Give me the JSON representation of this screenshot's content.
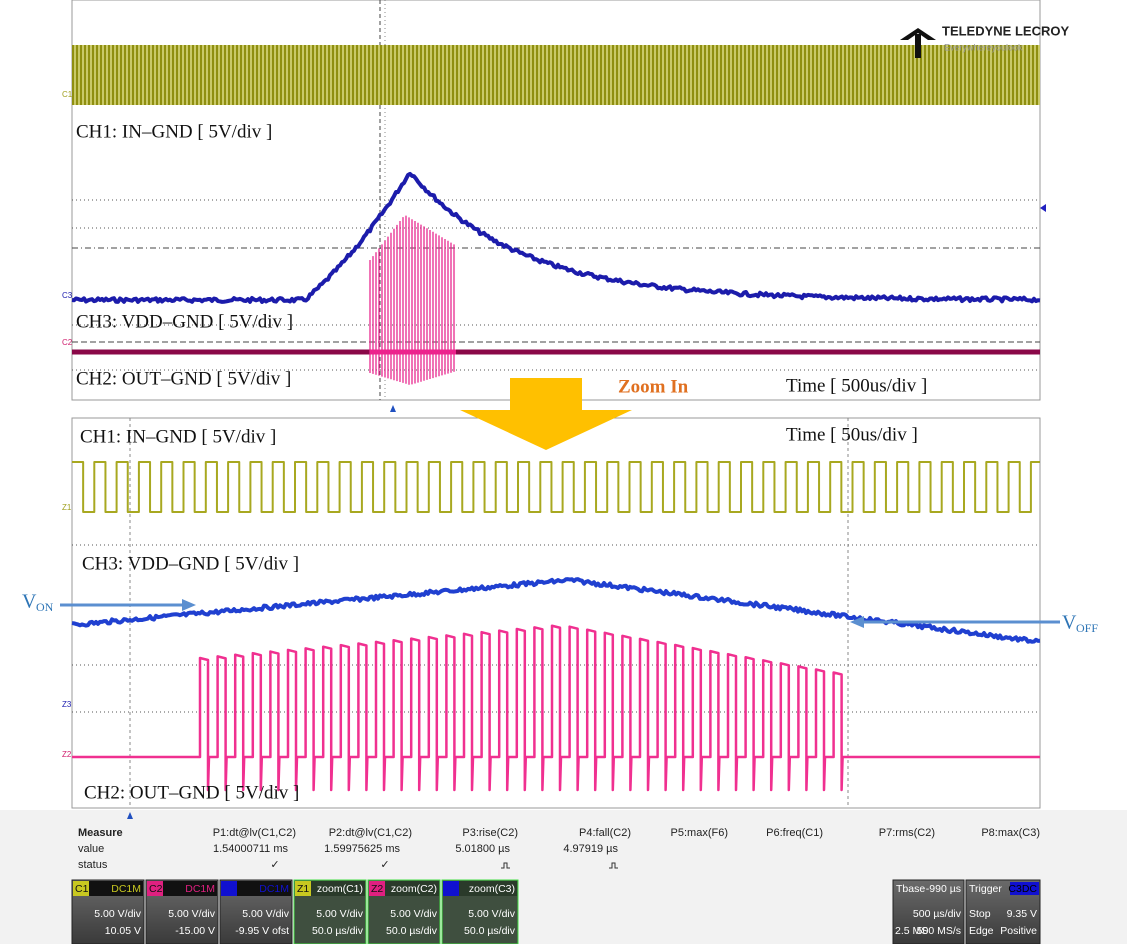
{
  "logo": {
    "brand": "TELEDYNE LECROY",
    "tagline": "Everywhereyoulook"
  },
  "top_panel": {
    "ch1_label": "CH1: IN–GND [ 5V/div ]",
    "ch3_label": "CH3: VDD–GND [ 5V/div ]",
    "ch2_label": "CH2: OUT–GND [ 5V/div ]",
    "time_label": "Time [ 500us/div ]",
    "markers": [
      "C1",
      "C3",
      "C2"
    ]
  },
  "zoom_label": "Zoom In",
  "bottom_panel": {
    "ch1_label": "CH1: IN–GND [ 5V/div ]",
    "ch3_label": "CH3: VDD–GND [ 5V/div ]",
    "ch2_label": "CH2: OUT–GND [ 5V/div ]",
    "time_label": "Time [ 50us/div ]",
    "markers": [
      "Z1",
      "Z3",
      "Z2"
    ]
  },
  "annotations": {
    "v_on": {
      "main": "V",
      "sub": "ON"
    },
    "v_off": {
      "main": "V",
      "sub": "OFF"
    }
  },
  "measure": {
    "headers": [
      "Measure",
      "P1:dt@lv(C1,C2)",
      "P2:dt@lv(C1,C2)",
      "P3:rise(C2)",
      "P4:fall(C2)",
      "P5:max(F6)",
      "P6:freq(C1)",
      "P7:rms(C2)",
      "P8:max(C3)"
    ],
    "value_row": {
      "label": "value",
      "cells": [
        "1.54000711 ms",
        "1.59975625 ms",
        "5.01800 µs",
        "4.97919 µs"
      ]
    },
    "status_row": {
      "label": "status",
      "cells": [
        "✓",
        "✓"
      ]
    }
  },
  "channels": [
    {
      "id": "C1",
      "coupling": "DC1M",
      "scale": "5.00 V/div",
      "offset": "10.05 V"
    },
    {
      "id": "C2",
      "coupling": "DC1M",
      "scale": "5.00 V/div",
      "offset": "-15.00 V"
    },
    {
      "id": "C3",
      "coupling": "DC1M",
      "scale": "5.00 V/div",
      "offset": "-9.95 V ofst"
    }
  ],
  "zooms": [
    {
      "id": "Z1",
      "source": "zoom(C1)",
      "scale": "5.00 V/div",
      "timebase": "50.0 µs/div"
    },
    {
      "id": "Z2",
      "source": "zoom(C2)",
      "scale": "5.00 V/div",
      "timebase": "50.0 µs/div"
    },
    {
      "id": "Z3",
      "source": "zoom(C3)",
      "scale": "5.00 V/div",
      "timebase": "50.0 µs/div"
    }
  ],
  "timebase": {
    "title": "Tbase",
    "delay": "-990 µs",
    "scale": "500 µs/div",
    "samples": "2.5 MS",
    "rate": "500 MS/s"
  },
  "trigger": {
    "title": "Trigger",
    "source": "C3DC",
    "mode": "Stop",
    "level": "9.35 V",
    "type": "Edge",
    "slope": "Positive"
  }
}
